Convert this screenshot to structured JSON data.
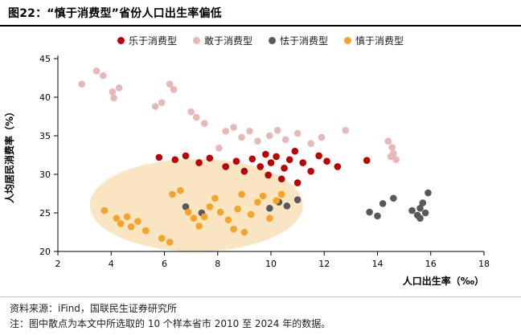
{
  "header": {
    "title": "图22：“慎于消费型”省份人口出生率偏低"
  },
  "footer": {
    "source": "资料来源：iFind，国联民生证券研究所",
    "note": "注：图中散点为本文中所选取的 10 个样本省市 2010 至 2024 年的数据。"
  },
  "chart_data": {
    "type": "scatter",
    "title": "“慎于消费型”省份人口出生率偏低",
    "xlabel": "人口出生率（‰）",
    "ylabel": "人均居民消费率（%）",
    "xlim": [
      2,
      18
    ],
    "ylim": [
      20,
      45
    ],
    "xticks": [
      2,
      4,
      6,
      8,
      10,
      12,
      14,
      16,
      18
    ],
    "yticks": [
      20,
      25,
      30,
      35,
      40,
      45
    ],
    "grid": false,
    "legend_position": "top-center",
    "highlight_ellipse": {
      "cx": 7.2,
      "cy": 26.0,
      "rx": 4.0,
      "ry": 6.0,
      "color": "#F9E2BD",
      "opacity": 0.9
    },
    "series": [
      {
        "name": "乐于消费型",
        "color": "#C00000",
        "points": [
          [
            5.8,
            32.2
          ],
          [
            6.4,
            31.9
          ],
          [
            6.8,
            32.4
          ],
          [
            7.3,
            31.5
          ],
          [
            7.7,
            32.1
          ],
          [
            8.3,
            31.0
          ],
          [
            8.7,
            31.7
          ],
          [
            9.0,
            30.4
          ],
          [
            9.3,
            32.0
          ],
          [
            9.6,
            31.0
          ],
          [
            9.8,
            32.6
          ],
          [
            10.0,
            31.5
          ],
          [
            10.2,
            32.3
          ],
          [
            10.5,
            30.8
          ],
          [
            10.7,
            31.9
          ],
          [
            10.9,
            33.0
          ],
          [
            11.2,
            31.5
          ],
          [
            11.5,
            30.4
          ],
          [
            11.8,
            32.4
          ],
          [
            12.1,
            31.7
          ],
          [
            12.5,
            31.0
          ],
          [
            13.6,
            31.8
          ],
          [
            9.9,
            29.9
          ],
          [
            10.4,
            29.4
          ],
          [
            11.0,
            28.9
          ]
        ]
      },
      {
        "name": "敢于消费型",
        "color": "#E7B8B8",
        "points": [
          [
            2.9,
            41.7
          ],
          [
            3.45,
            43.4
          ],
          [
            3.7,
            42.8
          ],
          [
            4.05,
            40.7
          ],
          [
            4.3,
            41.2
          ],
          [
            4.1,
            39.9
          ],
          [
            5.66,
            38.8
          ],
          [
            5.9,
            39.3
          ],
          [
            6.2,
            41.7
          ],
          [
            6.35,
            41.0
          ],
          [
            7.0,
            38.1
          ],
          [
            7.2,
            37.4
          ],
          [
            7.5,
            36.6
          ],
          [
            8.05,
            33.4
          ],
          [
            8.3,
            35.6
          ],
          [
            8.6,
            36.1
          ],
          [
            8.9,
            34.8
          ],
          [
            9.2,
            35.6
          ],
          [
            9.5,
            34.3
          ],
          [
            9.95,
            35.0
          ],
          [
            10.25,
            35.7
          ],
          [
            10.55,
            34.5
          ],
          [
            11.0,
            35.3
          ],
          [
            11.5,
            34.0
          ],
          [
            11.9,
            34.8
          ],
          [
            12.8,
            35.7
          ],
          [
            14.4,
            34.3
          ],
          [
            14.55,
            33.5
          ],
          [
            14.6,
            32.7
          ],
          [
            14.7,
            31.9
          ],
          [
            14.5,
            32.3
          ]
        ]
      },
      {
        "name": "怯于消费型",
        "color": "#595959",
        "points": [
          [
            6.8,
            25.8
          ],
          [
            7.4,
            25.0
          ],
          [
            9.95,
            25.6
          ],
          [
            10.3,
            26.4
          ],
          [
            10.6,
            25.9
          ],
          [
            11.0,
            26.7
          ],
          [
            13.7,
            25.1
          ],
          [
            14.0,
            24.6
          ],
          [
            14.2,
            26.2
          ],
          [
            14.6,
            26.9
          ],
          [
            15.3,
            25.3
          ],
          [
            15.5,
            24.7
          ],
          [
            15.6,
            25.6
          ],
          [
            15.7,
            26.3
          ],
          [
            15.8,
            25.0
          ],
          [
            15.9,
            27.6
          ],
          [
            15.6,
            24.3
          ]
        ]
      },
      {
        "name": "慎于消费型",
        "color": "#F7A329",
        "points": [
          [
            3.75,
            25.3
          ],
          [
            4.2,
            24.3
          ],
          [
            4.36,
            23.6
          ],
          [
            4.6,
            24.5
          ],
          [
            4.75,
            23.2
          ],
          [
            5.0,
            23.9
          ],
          [
            5.3,
            22.7
          ],
          [
            5.9,
            21.7
          ],
          [
            6.2,
            21.2
          ],
          [
            6.3,
            27.4
          ],
          [
            6.6,
            27.9
          ],
          [
            6.9,
            25.1
          ],
          [
            7.1,
            24.3
          ],
          [
            7.3,
            23.3
          ],
          [
            7.5,
            24.5
          ],
          [
            7.7,
            25.8
          ],
          [
            7.9,
            26.9
          ],
          [
            8.1,
            25.1
          ],
          [
            8.4,
            24.1
          ],
          [
            8.6,
            22.9
          ],
          [
            8.75,
            25.5
          ],
          [
            8.9,
            27.4
          ],
          [
            9.0,
            22.5
          ],
          [
            9.25,
            24.8
          ],
          [
            9.5,
            26.4
          ],
          [
            9.7,
            27.2
          ],
          [
            9.95,
            24.3
          ],
          [
            10.2,
            26.6
          ],
          [
            10.4,
            27.4
          ]
        ]
      }
    ]
  }
}
